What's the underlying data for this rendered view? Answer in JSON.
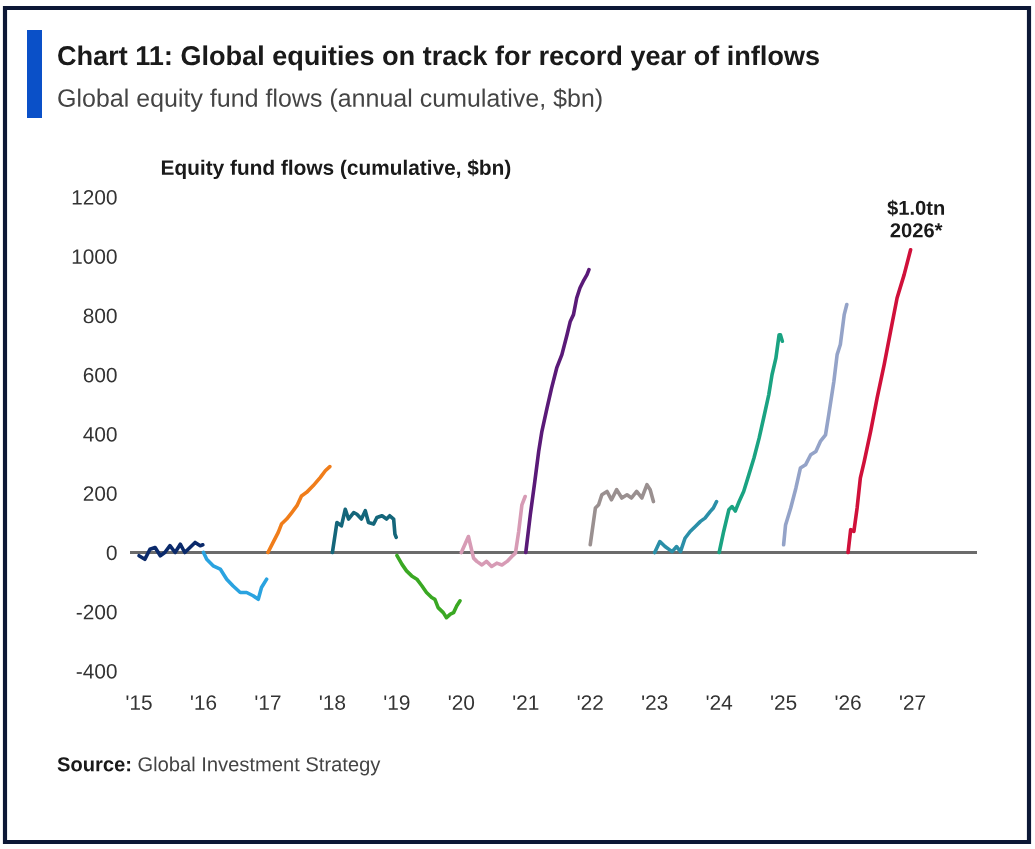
{
  "chart_data": {
    "type": "line",
    "title": "Chart 11: Global equities on track for record year of inflows",
    "subtitle": "Global equity fund flows (annual cumulative, $bn)",
    "ylabel": "Equity fund flows (cumulative, $bn)",
    "xlim": [
      2014.86,
      2028.0
    ],
    "xticks": [
      {
        "value": 2015,
        "label": "'15"
      },
      {
        "value": 2016,
        "label": "'16"
      },
      {
        "value": 2017,
        "label": "'17"
      },
      {
        "value": 2018,
        "label": "'18"
      },
      {
        "value": 2019,
        "label": "'19"
      },
      {
        "value": 2020,
        "label": "'20"
      },
      {
        "value": 2021,
        "label": "'21"
      },
      {
        "value": 2022,
        "label": "'22"
      },
      {
        "value": 2023,
        "label": "'23"
      },
      {
        "value": 2024,
        "label": "'24"
      },
      {
        "value": 2025,
        "label": "'25"
      },
      {
        "value": 2026,
        "label": "'26"
      },
      {
        "value": 2027,
        "label": "'27"
      }
    ],
    "ylim": [
      -400,
      1200
    ],
    "yticks": [
      -400,
      -200,
      0,
      200,
      400,
      600,
      800,
      1000,
      1200
    ],
    "grid": false,
    "marker": "none",
    "line_style": "solid",
    "ref_lines": [
      {
        "axis": "y",
        "value": 0,
        "color": "#6b6b6b"
      }
    ],
    "series": [
      {
        "color": "#0b2a6b",
        "x": [
          2015.0,
          2015.09,
          2015.17,
          2015.25,
          2015.33,
          2015.4,
          2015.48,
          2015.56,
          2015.64,
          2015.71,
          2015.79,
          2015.87,
          2015.95,
          2015.99
        ],
        "values": [
          -11,
          -23,
          11,
          17,
          -11,
          0,
          23,
          0,
          28,
          0,
          17,
          34,
          23,
          26
        ]
      },
      {
        "color": "#2aa3e0",
        "x": [
          2016.0,
          2016.05,
          2016.15,
          2016.26,
          2016.36,
          2016.46,
          2016.57,
          2016.67,
          2016.77,
          2016.85,
          2016.9,
          2016.98
        ],
        "values": [
          0,
          -23,
          -45,
          -56,
          -90,
          -113,
          -135,
          -135,
          -146,
          -158,
          -118,
          -90
        ]
      },
      {
        "color": "#f07d1a",
        "x": [
          2017.0,
          2017.08,
          2017.16,
          2017.21,
          2017.29,
          2017.37,
          2017.45,
          2017.52,
          2017.6,
          2017.7,
          2017.81,
          2017.89,
          2017.96
        ],
        "values": [
          0,
          34,
          68,
          96,
          113,
          135,
          158,
          191,
          203,
          225,
          253,
          276,
          290
        ]
      },
      {
        "color": "#14667a",
        "x": [
          2018.0,
          2018.07,
          2018.14,
          2018.2,
          2018.25,
          2018.33,
          2018.38,
          2018.45,
          2018.51,
          2018.56,
          2018.64,
          2018.69,
          2018.77,
          2018.84,
          2018.89,
          2018.95,
          2018.97,
          2018.99
        ],
        "values": [
          0,
          101,
          90,
          146,
          113,
          135,
          129,
          113,
          141,
          101,
          96,
          118,
          124,
          113,
          124,
          113,
          62,
          51
        ]
      },
      {
        "color": "#3aa823",
        "x": [
          2019.0,
          2019.08,
          2019.15,
          2019.23,
          2019.31,
          2019.39,
          2019.46,
          2019.54,
          2019.59,
          2019.64,
          2019.72,
          2019.77,
          2019.83,
          2019.88,
          2019.93,
          2019.98
        ],
        "values": [
          -10,
          -40,
          -62,
          -79,
          -90,
          -113,
          -135,
          -152,
          -158,
          -186,
          -203,
          -220,
          -208,
          -203,
          -180,
          -163
        ]
      },
      {
        "color": "#d79bb5",
        "x": [
          2020.0,
          2020.11,
          2020.19,
          2020.24,
          2020.32,
          2020.39,
          2020.47,
          2020.55,
          2020.63,
          2020.71,
          2020.78,
          2020.84,
          2020.89,
          2020.94,
          2020.99
        ],
        "values": [
          0,
          54,
          -19,
          -30,
          -42,
          -30,
          -47,
          -36,
          -42,
          -30,
          -14,
          -2,
          71,
          161,
          189
        ]
      },
      {
        "color": "#5a1a78",
        "x": [
          2021.0,
          2021.07,
          2021.14,
          2021.2,
          2021.25,
          2021.33,
          2021.4,
          2021.48,
          2021.56,
          2021.64,
          2021.69,
          2021.74,
          2021.79,
          2021.84,
          2021.89,
          2021.95,
          2021.98
        ],
        "values": [
          0,
          127,
          240,
          341,
          409,
          488,
          555,
          623,
          668,
          735,
          780,
          803,
          859,
          893,
          915,
          938,
          955
        ]
      },
      {
        "color": "#9a9090",
        "x": [
          2022.0,
          2022.08,
          2022.13,
          2022.18,
          2022.26,
          2022.33,
          2022.41,
          2022.49,
          2022.57,
          2022.64,
          2022.72,
          2022.8,
          2022.88,
          2022.93,
          2022.98
        ],
        "values": [
          26,
          150,
          161,
          195,
          206,
          178,
          212,
          184,
          195,
          184,
          206,
          184,
          229,
          212,
          172
        ]
      },
      {
        "color": "#2b8fa8",
        "x": [
          2023.0,
          2023.08,
          2023.16,
          2023.27,
          2023.34,
          2023.4,
          2023.47,
          2023.55,
          2023.63,
          2023.71,
          2023.78,
          2023.86,
          2023.91,
          2023.96
        ],
        "values": [
          0,
          37,
          20,
          3,
          20,
          3,
          48,
          71,
          88,
          105,
          116,
          138,
          150,
          172
        ]
      },
      {
        "color": "#1aa382",
        "x": [
          2024.0,
          2024.07,
          2024.15,
          2024.2,
          2024.25,
          2024.31,
          2024.38,
          2024.46,
          2024.54,
          2024.62,
          2024.69,
          2024.77,
          2024.82,
          2024.88,
          2024.93,
          2024.95,
          2024.98
        ],
        "values": [
          0,
          71,
          144,
          155,
          140,
          172,
          206,
          262,
          319,
          386,
          454,
          533,
          600,
          656,
          735,
          735,
          713
        ]
      },
      {
        "color": "#94a3c8",
        "x": [
          2025.0,
          2025.03,
          2025.11,
          2025.19,
          2025.26,
          2025.34,
          2025.42,
          2025.5,
          2025.57,
          2025.65,
          2025.7,
          2025.78,
          2025.83,
          2025.88,
          2025.94,
          2025.98
        ],
        "values": [
          26,
          93,
          150,
          217,
          285,
          296,
          330,
          341,
          375,
          397,
          465,
          578,
          668,
          702,
          803,
          837
        ]
      },
      {
        "color": "#d0103a",
        "x": [
          2026.0,
          2026.04,
          2026.09,
          2026.14,
          2026.19,
          2026.25,
          2026.35,
          2026.45,
          2026.56,
          2026.66,
          2026.76,
          2026.87,
          2026.97
        ],
        "values": [
          0,
          77,
          71,
          150,
          251,
          307,
          409,
          521,
          634,
          747,
          859,
          938,
          1022
        ]
      }
    ],
    "annotations": [
      {
        "text": "$1.0tn\n2026*",
        "x": 2026.97,
        "y": 1022
      },
      "Source: Global Investment Strategy"
    ]
  }
}
